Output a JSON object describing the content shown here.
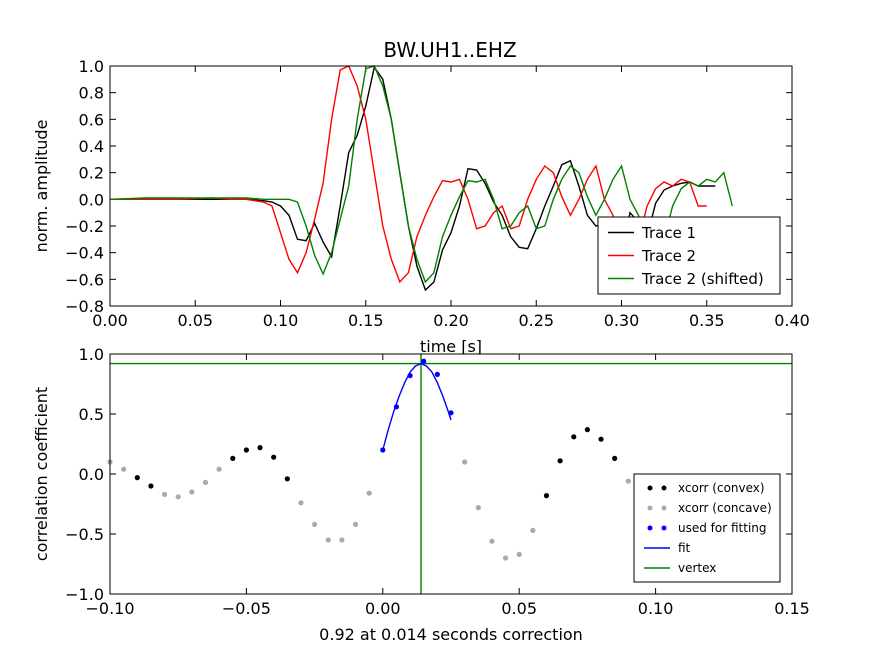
{
  "chart_data": [
    {
      "type": "line",
      "title": "BW.UH1..EHZ",
      "xlabel": "time [s]",
      "ylabel": "norm. amplitude",
      "xlim": [
        0.0,
        0.4
      ],
      "ylim": [
        -0.8,
        1.0
      ],
      "xticks": [
        "0.00",
        "0.05",
        "0.10",
        "0.15",
        "0.20",
        "0.25",
        "0.30",
        "0.35",
        "0.40"
      ],
      "yticks": [
        "1.0",
        "0.8",
        "0.6",
        "0.4",
        "0.2",
        "0.0",
        "−0.2",
        "−0.4",
        "−0.6",
        "−0.8"
      ],
      "grid": false,
      "legend_position": "lower-right",
      "series": [
        {
          "name": "Trace 1",
          "color": "#000000",
          "x": [
            0.0,
            0.02,
            0.04,
            0.06,
            0.08,
            0.09,
            0.095,
            0.1,
            0.105,
            0.11,
            0.115,
            0.12,
            0.125,
            0.13,
            0.135,
            0.14,
            0.145,
            0.15,
            0.155,
            0.16,
            0.165,
            0.17,
            0.175,
            0.18,
            0.185,
            0.19,
            0.195,
            0.2,
            0.205,
            0.21,
            0.215,
            0.22,
            0.225,
            0.23,
            0.235,
            0.24,
            0.245,
            0.25,
            0.255,
            0.26,
            0.265,
            0.27,
            0.275,
            0.28,
            0.285,
            0.29,
            0.295,
            0.3,
            0.305,
            0.31,
            0.315,
            0.32,
            0.325,
            0.33,
            0.335,
            0.34,
            0.345,
            0.35,
            0.355
          ],
          "y": [
            0.0,
            0.0,
            0.0,
            0.0,
            0.0,
            -0.01,
            -0.02,
            -0.05,
            -0.12,
            -0.3,
            -0.31,
            -0.18,
            -0.32,
            -0.43,
            -0.05,
            0.35,
            0.48,
            0.7,
            0.99,
            0.9,
            0.6,
            0.2,
            -0.2,
            -0.5,
            -0.68,
            -0.62,
            -0.38,
            -0.25,
            -0.05,
            0.23,
            0.22,
            0.12,
            -0.02,
            -0.12,
            -0.28,
            -0.36,
            -0.37,
            -0.22,
            -0.05,
            0.1,
            0.26,
            0.29,
            0.1,
            -0.12,
            -0.2,
            -0.18,
            -0.35,
            -0.43,
            -0.1,
            -0.17,
            -0.28,
            -0.03,
            0.07,
            0.1,
            0.12,
            0.13,
            0.1,
            0.1,
            0.1
          ]
        },
        {
          "name": "Trace 2",
          "color": "#ff0000",
          "x": [
            0.0,
            0.02,
            0.04,
            0.06,
            0.07,
            0.08,
            0.085,
            0.09,
            0.095,
            0.1,
            0.105,
            0.11,
            0.115,
            0.12,
            0.125,
            0.13,
            0.135,
            0.14,
            0.145,
            0.15,
            0.155,
            0.16,
            0.165,
            0.17,
            0.175,
            0.18,
            0.185,
            0.19,
            0.195,
            0.2,
            0.205,
            0.21,
            0.215,
            0.22,
            0.225,
            0.23,
            0.235,
            0.24,
            0.245,
            0.25,
            0.255,
            0.26,
            0.265,
            0.27,
            0.275,
            0.28,
            0.285,
            0.29,
            0.295,
            0.3,
            0.305,
            0.31,
            0.315,
            0.32,
            0.325,
            0.33,
            0.335,
            0.34,
            0.345,
            0.35
          ],
          "y": [
            0.0,
            0.0,
            0.0,
            0.01,
            0.0,
            0.0,
            -0.01,
            -0.02,
            -0.05,
            -0.25,
            -0.45,
            -0.55,
            -0.4,
            -0.15,
            0.12,
            0.6,
            0.97,
            1.0,
            0.85,
            0.6,
            0.2,
            -0.2,
            -0.45,
            -0.62,
            -0.55,
            -0.28,
            -0.12,
            0.02,
            0.14,
            0.13,
            0.15,
            0.0,
            -0.22,
            -0.2,
            -0.1,
            -0.05,
            -0.22,
            -0.2,
            0.0,
            0.15,
            0.25,
            0.2,
            0.02,
            -0.12,
            0.0,
            0.15,
            0.25,
            0.0,
            -0.12,
            -0.35,
            -0.48,
            -0.3,
            -0.05,
            0.08,
            0.13,
            0.1,
            0.15,
            0.13,
            -0.05,
            -0.05
          ]
        },
        {
          "name": "Trace 2 (shifted)",
          "color": "#008000",
          "x": [
            0.0,
            0.02,
            0.04,
            0.06,
            0.08,
            0.09,
            0.1,
            0.105,
            0.11,
            0.115,
            0.12,
            0.125,
            0.13,
            0.135,
            0.14,
            0.145,
            0.15,
            0.155,
            0.16,
            0.165,
            0.17,
            0.175,
            0.18,
            0.185,
            0.19,
            0.195,
            0.2,
            0.205,
            0.21,
            0.215,
            0.22,
            0.225,
            0.23,
            0.235,
            0.24,
            0.245,
            0.25,
            0.255,
            0.26,
            0.265,
            0.27,
            0.275,
            0.28,
            0.285,
            0.29,
            0.295,
            0.3,
            0.305,
            0.31,
            0.315,
            0.32,
            0.325,
            0.33,
            0.335,
            0.34,
            0.345,
            0.35,
            0.355,
            0.36,
            0.365
          ],
          "y": [
            0.0,
            0.01,
            0.01,
            0.01,
            0.01,
            0.0,
            0.0,
            0.0,
            -0.02,
            -0.2,
            -0.42,
            -0.56,
            -0.4,
            -0.15,
            0.1,
            0.6,
            0.98,
            1.0,
            0.85,
            0.6,
            0.2,
            -0.2,
            -0.45,
            -0.62,
            -0.55,
            -0.28,
            -0.12,
            0.02,
            0.14,
            0.13,
            0.15,
            0.0,
            -0.22,
            -0.2,
            -0.1,
            -0.05,
            -0.22,
            -0.2,
            0.0,
            0.15,
            0.25,
            0.2,
            0.02,
            -0.12,
            0.0,
            0.15,
            0.25,
            0.0,
            -0.12,
            -0.35,
            -0.48,
            -0.3,
            -0.05,
            0.08,
            0.13,
            0.1,
            0.15,
            0.13,
            0.2,
            -0.05
          ]
        }
      ]
    },
    {
      "type": "scatter",
      "title": "",
      "xlabel": "0.92 at 0.014 seconds correction",
      "ylabel": "correlation coefficient",
      "xlim": [
        -0.1,
        0.15
      ],
      "ylim": [
        -1.0,
        1.0
      ],
      "xticks": [
        "−0.10",
        "−0.05",
        "0.00",
        "0.05",
        "0.10",
        "0.15"
      ],
      "yticks": [
        "1.0",
        "0.5",
        "0.0",
        "−0.5",
        "−1.0"
      ],
      "grid": false,
      "legend_position": "lower-right",
      "vertex": {
        "x": 0.014,
        "y": 0.92
      },
      "series": [
        {
          "name": "xcorr (convex)",
          "color": "#000000",
          "kind": "points",
          "x": [
            -0.09,
            -0.085,
            -0.055,
            -0.05,
            -0.045,
            -0.04,
            -0.035,
            0.06,
            0.065,
            0.07,
            0.075,
            0.08,
            0.085
          ],
          "y": [
            -0.03,
            -0.1,
            0.13,
            0.2,
            0.22,
            0.14,
            -0.04,
            -0.18,
            0.11,
            0.31,
            0.37,
            0.29,
            0.13
          ]
        },
        {
          "name": "xcorr (concave)",
          "color": "#aaaaaa",
          "kind": "points",
          "x": [
            -0.1,
            -0.095,
            -0.08,
            -0.075,
            -0.07,
            -0.065,
            -0.06,
            -0.03,
            -0.025,
            -0.02,
            -0.015,
            -0.01,
            -0.005,
            0.03,
            0.035,
            0.04,
            0.045,
            0.05,
            0.055,
            0.09
          ],
          "y": [
            0.1,
            0.04,
            -0.17,
            -0.19,
            -0.15,
            -0.07,
            0.04,
            -0.24,
            -0.42,
            -0.55,
            -0.55,
            -0.42,
            -0.16,
            0.1,
            -0.28,
            -0.56,
            -0.7,
            -0.67,
            -0.47,
            -0.06
          ]
        },
        {
          "name": "used for fitting",
          "color": "#0000ff",
          "kind": "points",
          "x": [
            0.0,
            0.005,
            0.01,
            0.015,
            0.02,
            0.025
          ],
          "y": [
            0.2,
            0.56,
            0.82,
            0.94,
            0.83,
            0.51
          ]
        },
        {
          "name": "fit",
          "color": "#0000ff",
          "kind": "line",
          "x": [
            0.0,
            0.002,
            0.004,
            0.006,
            0.008,
            0.01,
            0.012,
            0.014,
            0.016,
            0.018,
            0.02,
            0.022,
            0.024,
            0.025
          ],
          "y": [
            0.2,
            0.37,
            0.52,
            0.65,
            0.76,
            0.85,
            0.9,
            0.92,
            0.9,
            0.85,
            0.76,
            0.65,
            0.52,
            0.45
          ]
        },
        {
          "name": "vertex",
          "color": "#008000",
          "kind": "line"
        }
      ]
    }
  ]
}
